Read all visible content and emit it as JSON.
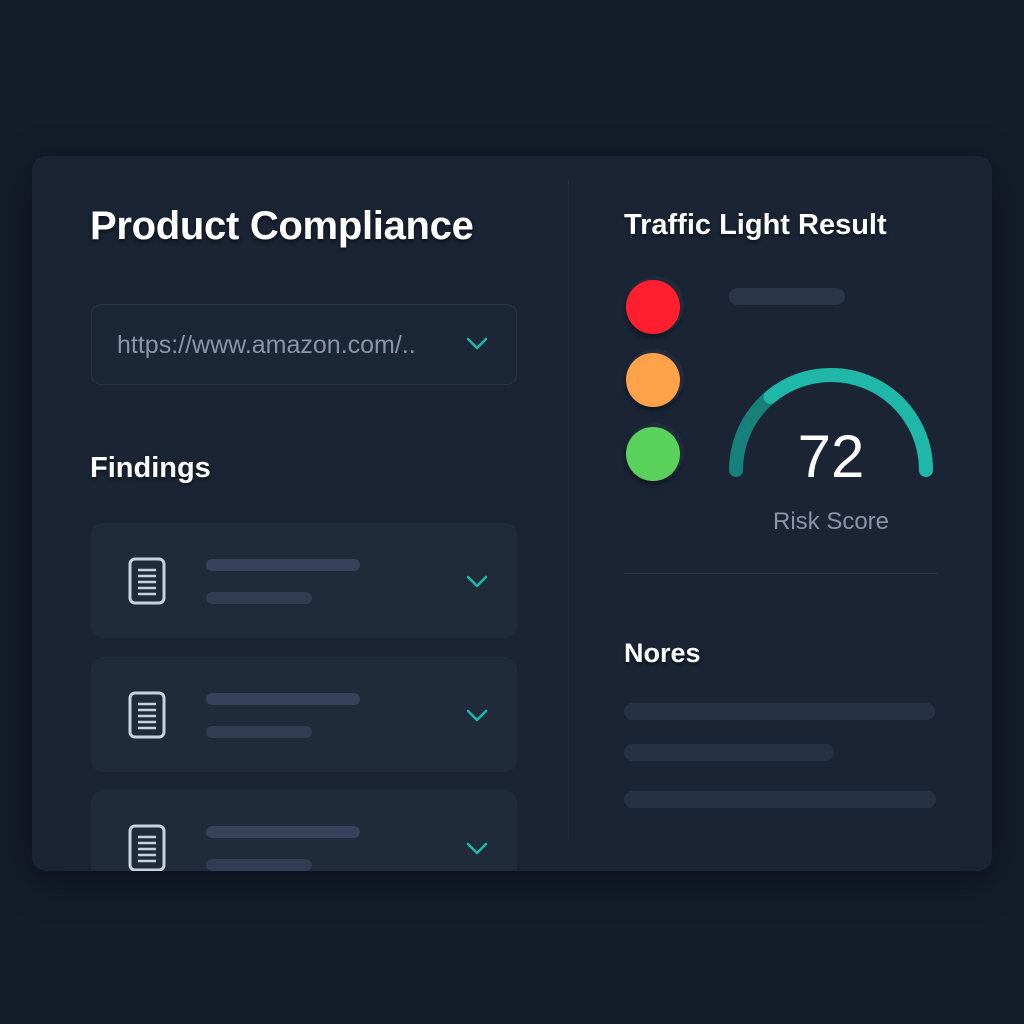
{
  "colors": {
    "accent_teal": "#1fb8a8",
    "red_light": "#ff1f2f",
    "amber_light": "#ffa24a",
    "green_light": "#5ad15a"
  },
  "header": {
    "title": "Product Compliance"
  },
  "url_field": {
    "value": "https://www.amazon.com/..",
    "icon": "chevron-down-icon"
  },
  "findings": {
    "title": "Findings",
    "items": [
      {
        "icon": "document-icon",
        "expand_icon": "chevron-down-icon"
      },
      {
        "icon": "document-icon",
        "expand_icon": "chevron-down-icon"
      },
      {
        "icon": "document-icon",
        "expand_icon": "chevron-down-icon"
      }
    ]
  },
  "traffic_light": {
    "title": "Traffic Light Result",
    "lights": [
      "red",
      "amber",
      "green"
    ]
  },
  "risk": {
    "score": "72",
    "label": "Risk Score",
    "gauge_fill_fraction": 0.72
  },
  "notes": {
    "title": "Nores"
  }
}
